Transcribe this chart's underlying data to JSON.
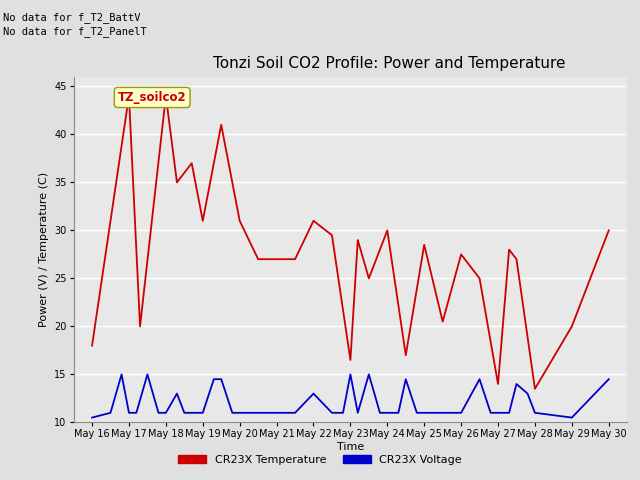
{
  "title": "Tonzi Soil CO2 Profile: Power and Temperature",
  "ylabel": "Power (V) / Temperature (C)",
  "xlabel": "Time",
  "top_left_text_line1": "No data for f_T2_BattV",
  "top_left_text_line2": "No data for f_T2_PanelT",
  "box_label": "TZ_soilco2",
  "ylim": [
    10,
    46
  ],
  "yticks": [
    10,
    15,
    20,
    25,
    30,
    35,
    40,
    45
  ],
  "x_labels": [
    "May 16",
    "May 17",
    "May 18",
    "May 19",
    "May 20",
    "May 21",
    "May 22",
    "May 23",
    "May 24",
    "May 25",
    "May 26",
    "May 27",
    "May 28",
    "May 29",
    "May 30"
  ],
  "red_x": [
    0,
    1,
    1.3,
    2,
    2.3,
    2.7,
    3,
    3.5,
    4,
    4.5,
    5,
    5.5,
    6,
    6.5,
    7,
    7.2,
    7.5,
    8,
    8.5,
    9,
    9.5,
    10,
    10.2,
    10.5,
    11,
    11.3,
    11.5,
    12,
    13,
    14
  ],
  "red_y": [
    18,
    44,
    20,
    44,
    35,
    37,
    31,
    41,
    31,
    27,
    27,
    27,
    31,
    29.5,
    16.5,
    29,
    25,
    30,
    17,
    28.5,
    20.5,
    27.5,
    26.5,
    25,
    14,
    28,
    27,
    13.5,
    20,
    30
  ],
  "blue_x": [
    0,
    0.5,
    0.8,
    1.0,
    1.2,
    1.5,
    1.8,
    2.0,
    2.3,
    2.5,
    2.8,
    3.0,
    3.3,
    3.5,
    3.8,
    4.0,
    4.5,
    5.0,
    5.5,
    6.0,
    6.5,
    6.8,
    7.0,
    7.2,
    7.5,
    7.8,
    8.0,
    8.3,
    8.5,
    8.8,
    9.0,
    9.5,
    10.0,
    10.5,
    10.8,
    11.0,
    11.3,
    11.5,
    11.8,
    12.0,
    13.0,
    14.0
  ],
  "blue_y": [
    10.5,
    11,
    15,
    11,
    11,
    15,
    11,
    11,
    13,
    11,
    11,
    11,
    14.5,
    14.5,
    11,
    11,
    11,
    11,
    11,
    13,
    11,
    11,
    15,
    11,
    15,
    11,
    11,
    11,
    14.5,
    11,
    11,
    11,
    11,
    14.5,
    11,
    11,
    11,
    14,
    13,
    11,
    10.5,
    14.5
  ],
  "legend_red_label": "CR23X Temperature",
  "legend_blue_label": "CR23X Voltage",
  "bg_color": "#e0e0e0",
  "plot_bg": "#e8e8e8",
  "red_color": "#cc0000",
  "blue_color": "#0000cc",
  "box_bg": "#ffffcc",
  "box_edge": "#999900",
  "title_fontsize": 11,
  "ylabel_fontsize": 8,
  "xlabel_fontsize": 8,
  "tick_fontsize": 7,
  "legend_fontsize": 8
}
